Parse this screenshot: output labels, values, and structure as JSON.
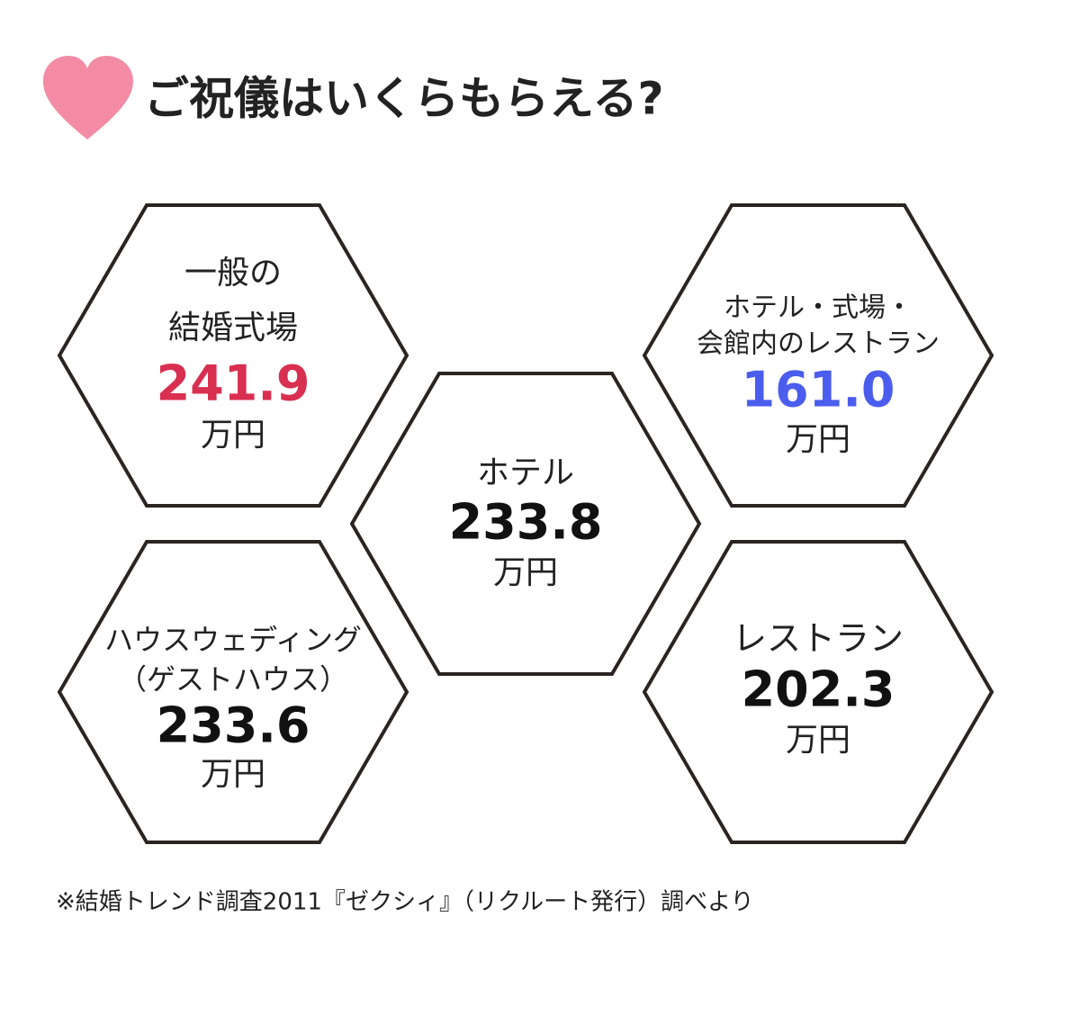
{
  "header": {
    "title": "ご祝儀はいくらもらえる?"
  },
  "hexagons": [
    {
      "label": [
        "一般の",
        "結婚式場"
      ],
      "value": "241.9",
      "unit": "万円",
      "color": "#d92f50"
    },
    {
      "label": [
        "ホテル"
      ],
      "value": "233.8",
      "unit": "万円",
      "color": "#111111"
    },
    {
      "label": [
        "ホテル・式場・",
        "会館内のレストラン"
      ],
      "value": "161.0",
      "unit": "万円",
      "color": "#4b5ded"
    },
    {
      "label": [
        "ハウスウェディング",
        "（ゲストハウス）"
      ],
      "value": "233.6",
      "unit": "万円",
      "color": "#111111"
    },
    {
      "label": [
        "レストラン"
      ],
      "value": "202.3",
      "unit": "万円",
      "color": "#111111"
    }
  ],
  "footer": {
    "source": "※結婚トレンド調査2011『ゼクシィ』（リクルート発行）調べより"
  }
}
